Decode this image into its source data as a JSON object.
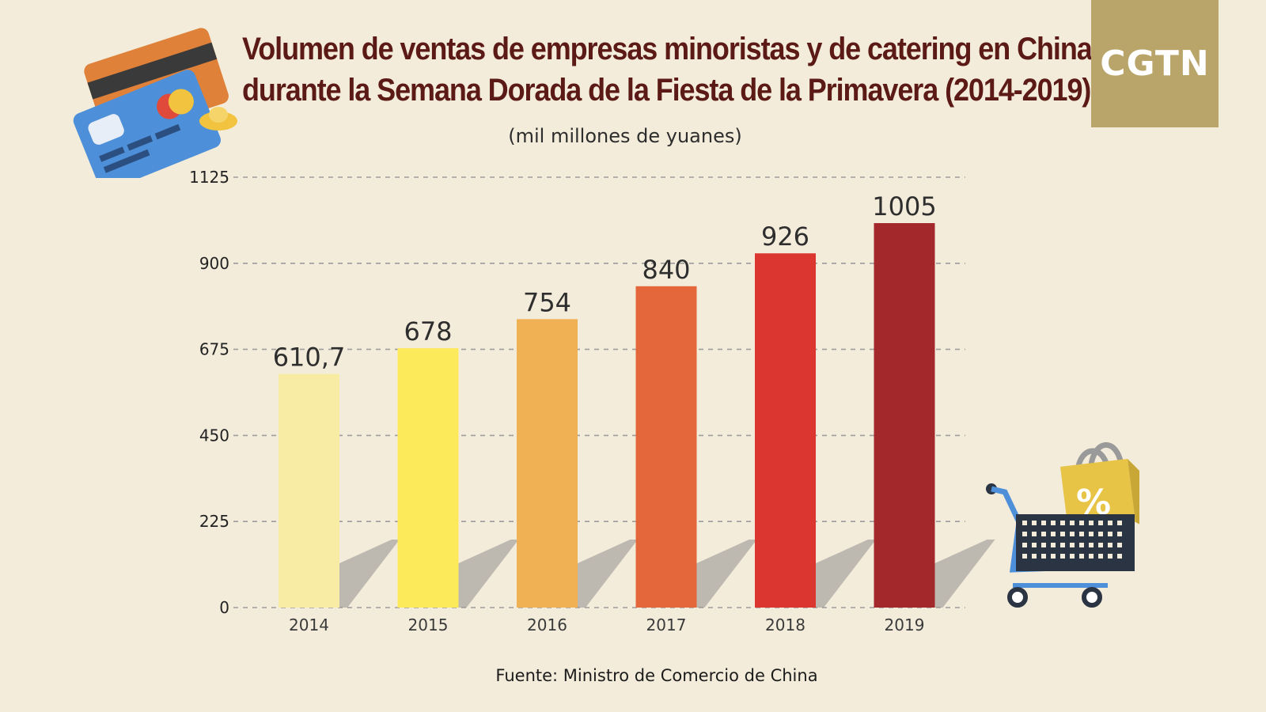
{
  "title_lines": [
    "Volumen de ventas de empresas minoristas y de catering en China",
    "durante la Semana Dorada de la Fiesta de la Primavera (2014-2019)"
  ],
  "logo_text": "CGTN",
  "unit_label": "(mil millones de yuanes)",
  "source": "Fuente: Ministro de Comercio de China",
  "chart_data": {
    "type": "bar",
    "categories": [
      "2014",
      "2015",
      "2016",
      "2017",
      "2018",
      "2019"
    ],
    "values": [
      610.7,
      678,
      754,
      840,
      926,
      1005
    ],
    "value_labels": [
      "610,7",
      "678",
      "754",
      "840",
      "926",
      "1005"
    ],
    "bar_colors": [
      "#f8eba4",
      "#fcea5a",
      "#f0b154",
      "#e3673a",
      "#dc3631",
      "#a3282c"
    ],
    "ylim": [
      0,
      1125
    ],
    "yticks": [
      0,
      225,
      450,
      675,
      900,
      1125
    ],
    "grid": true,
    "ylabel": "",
    "xlabel": ""
  },
  "decorations": {
    "credit_cards_icon": "credit-card-icon",
    "shopping_cart_icon": "shopping-cart-icon",
    "percent_bag_text": "%"
  }
}
